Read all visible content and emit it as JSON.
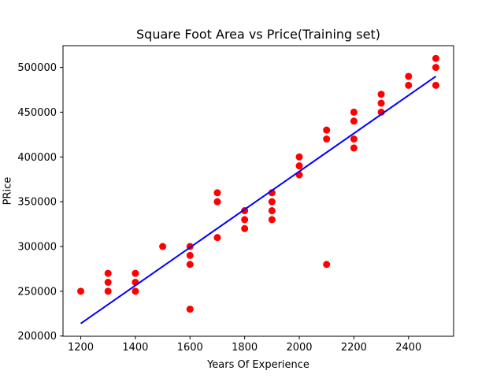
{
  "chart_data": {
    "type": "scatter",
    "title": "Square Foot Area vs Price(Training set)",
    "xlabel": "Years Of Experience",
    "ylabel": "PRice",
    "xlim": [
      1135,
      2565
    ],
    "ylim": [
      199750,
      524250
    ],
    "grid": false,
    "x_ticks": [
      1200,
      1400,
      1600,
      1800,
      2000,
      2200,
      2400
    ],
    "y_ticks": [
      200000,
      250000,
      300000,
      350000,
      400000,
      450000,
      500000
    ],
    "colors": {
      "points": "#ff0000",
      "line": "#0000ff",
      "axes": "#000000"
    },
    "series": [
      {
        "type": "scatter",
        "points": [
          [
            1200,
            250000
          ],
          [
            1300,
            270000
          ],
          [
            1300,
            260000
          ],
          [
            1300,
            250000
          ],
          [
            1400,
            270000
          ],
          [
            1400,
            260000
          ],
          [
            1400,
            250000
          ],
          [
            1500,
            300000
          ],
          [
            1600,
            300000
          ],
          [
            1600,
            290000
          ],
          [
            1600,
            280000
          ],
          [
            1600,
            230000
          ],
          [
            1700,
            360000
          ],
          [
            1700,
            350000
          ],
          [
            1700,
            310000
          ],
          [
            1800,
            340000
          ],
          [
            1800,
            330000
          ],
          [
            1800,
            320000
          ],
          [
            1900,
            360000
          ],
          [
            1900,
            350000
          ],
          [
            1900,
            340000
          ],
          [
            1900,
            330000
          ],
          [
            2000,
            400000
          ],
          [
            2000,
            390000
          ],
          [
            2000,
            380000
          ],
          [
            2100,
            430000
          ],
          [
            2100,
            420000
          ],
          [
            2100,
            280000
          ],
          [
            2200,
            450000
          ],
          [
            2200,
            440000
          ],
          [
            2200,
            420000
          ],
          [
            2200,
            410000
          ],
          [
            2300,
            470000
          ],
          [
            2300,
            460000
          ],
          [
            2300,
            450000
          ],
          [
            2400,
            490000
          ],
          [
            2400,
            480000
          ],
          [
            2500,
            510000
          ],
          [
            2500,
            500000
          ],
          [
            2500,
            480000
          ]
        ]
      },
      {
        "type": "line",
        "points": [
          [
            1200,
            214000
          ],
          [
            2500,
            490000
          ]
        ]
      }
    ]
  }
}
